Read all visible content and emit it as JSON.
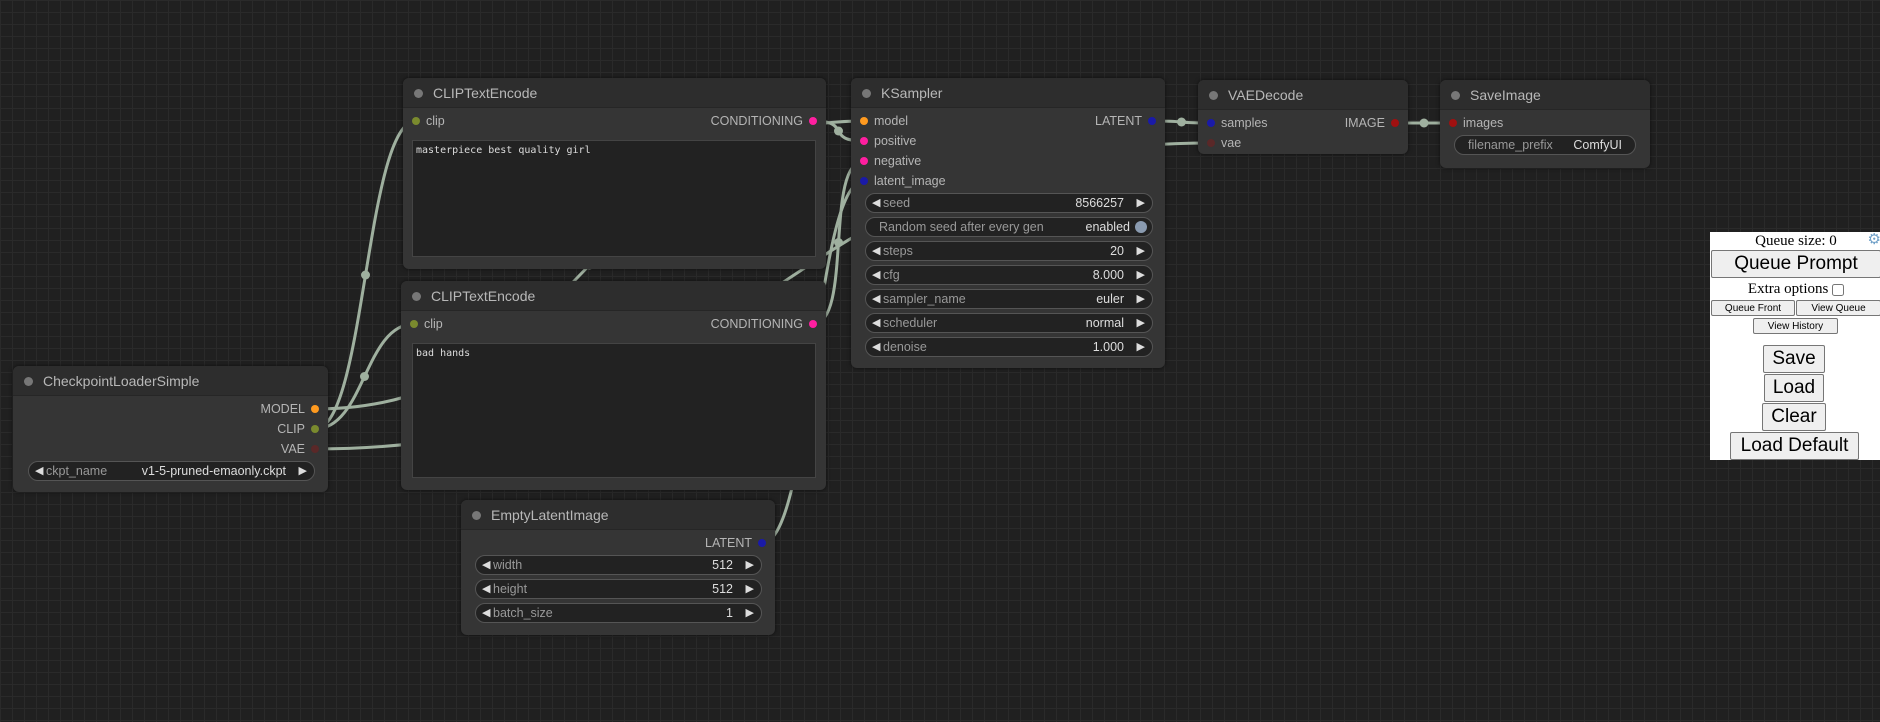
{
  "colors": {
    "link": "#9fb09f",
    "model": "#ff9a1f",
    "clip": "#7a8a2e",
    "conditioning": "#ff1fa0",
    "latent": "#1a1aa8",
    "vae": "#5a2828",
    "image": "#a01010"
  },
  "nodes": [
    {
      "id": "clip_pos",
      "title": "CLIPTextEncode",
      "inputs": [
        {
          "name": "clip",
          "type": "clip"
        }
      ],
      "outputs": [
        {
          "name": "CONDITIONING",
          "type": "conditioning"
        }
      ],
      "text": "masterpiece best quality girl",
      "widgets": []
    },
    {
      "id": "clip_neg",
      "title": "CLIPTextEncode",
      "inputs": [
        {
          "name": "clip",
          "type": "clip"
        }
      ],
      "outputs": [
        {
          "name": "CONDITIONING",
          "type": "conditioning"
        }
      ],
      "text": "bad hands",
      "widgets": []
    },
    {
      "id": "ckpt",
      "title": "CheckpointLoaderSimple",
      "inputs": [],
      "outputs": [
        {
          "name": "MODEL",
          "type": "model"
        },
        {
          "name": "CLIP",
          "type": "clip"
        },
        {
          "name": "VAE",
          "type": "vae"
        }
      ],
      "widgets": [
        {
          "kind": "combo",
          "label": "ckpt_name",
          "value": "v1-5-pruned-emaonly.ckpt"
        }
      ]
    },
    {
      "id": "latent",
      "title": "EmptyLatentImage",
      "inputs": [],
      "outputs": [
        {
          "name": "LATENT",
          "type": "latent"
        }
      ],
      "widgets": [
        {
          "kind": "number",
          "label": "width",
          "value": "512"
        },
        {
          "kind": "number",
          "label": "height",
          "value": "512"
        },
        {
          "kind": "number",
          "label": "batch_size",
          "value": "1"
        }
      ]
    },
    {
      "id": "ksampler",
      "title": "KSampler",
      "inputs": [
        {
          "name": "model",
          "type": "model"
        },
        {
          "name": "positive",
          "type": "conditioning"
        },
        {
          "name": "negative",
          "type": "conditioning"
        },
        {
          "name": "latent_image",
          "type": "latent"
        }
      ],
      "outputs": [
        {
          "name": "LATENT",
          "type": "latent"
        }
      ],
      "widgets": [
        {
          "kind": "number",
          "label": "seed",
          "value": "8566257"
        },
        {
          "kind": "toggle",
          "label": "Random seed after every gen",
          "value": "enabled"
        },
        {
          "kind": "number",
          "label": "steps",
          "value": "20"
        },
        {
          "kind": "number",
          "label": "cfg",
          "value": "8.000"
        },
        {
          "kind": "combo",
          "label": "sampler_name",
          "value": "euler"
        },
        {
          "kind": "combo",
          "label": "scheduler",
          "value": "normal"
        },
        {
          "kind": "number",
          "label": "denoise",
          "value": "1.000"
        }
      ]
    },
    {
      "id": "vaedecode",
      "title": "VAEDecode",
      "inputs": [
        {
          "name": "samples",
          "type": "latent"
        },
        {
          "name": "vae",
          "type": "vae"
        }
      ],
      "outputs": [
        {
          "name": "IMAGE",
          "type": "image"
        }
      ],
      "widgets": []
    },
    {
      "id": "save",
      "title": "SaveImage",
      "inputs": [
        {
          "name": "images",
          "type": "image"
        }
      ],
      "outputs": [],
      "widgets": [
        {
          "kind": "text",
          "label": "filename_prefix",
          "value": "ComfyUI"
        }
      ]
    }
  ],
  "panel": {
    "queue_size": "Queue size: 0",
    "settings_icon": "gear-icon",
    "queue_prompt": "Queue Prompt",
    "extra_options": "Extra options",
    "extra_options_checked": false,
    "queue_front": "Queue Front",
    "view_queue": "View Queue",
    "view_history": "View History",
    "save": "Save",
    "load": "Load",
    "clear": "Clear",
    "load_default": "Load Default"
  }
}
